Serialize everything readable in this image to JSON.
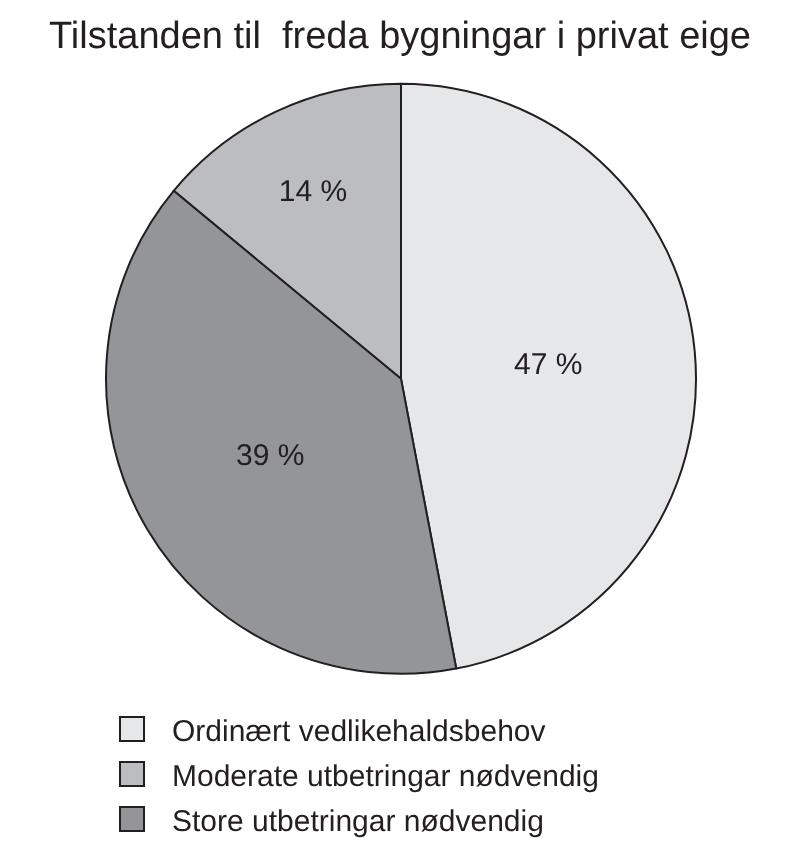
{
  "chart_data": {
    "type": "pie",
    "title": "Tilstanden til  freda bygningar i privat eige",
    "categories": [
      "Ordinært vedlikehaldsbehov",
      "Moderate utbetringar nødvendig",
      "Store utbetringar nødvendig"
    ],
    "values": [
      47,
      14,
      39
    ],
    "colors": [
      "#e6e7e8",
      "#bcbdc0",
      "#939598"
    ],
    "value_labels": [
      "47 %",
      "14 %",
      "39 %"
    ],
    "legend": "bottom"
  }
}
